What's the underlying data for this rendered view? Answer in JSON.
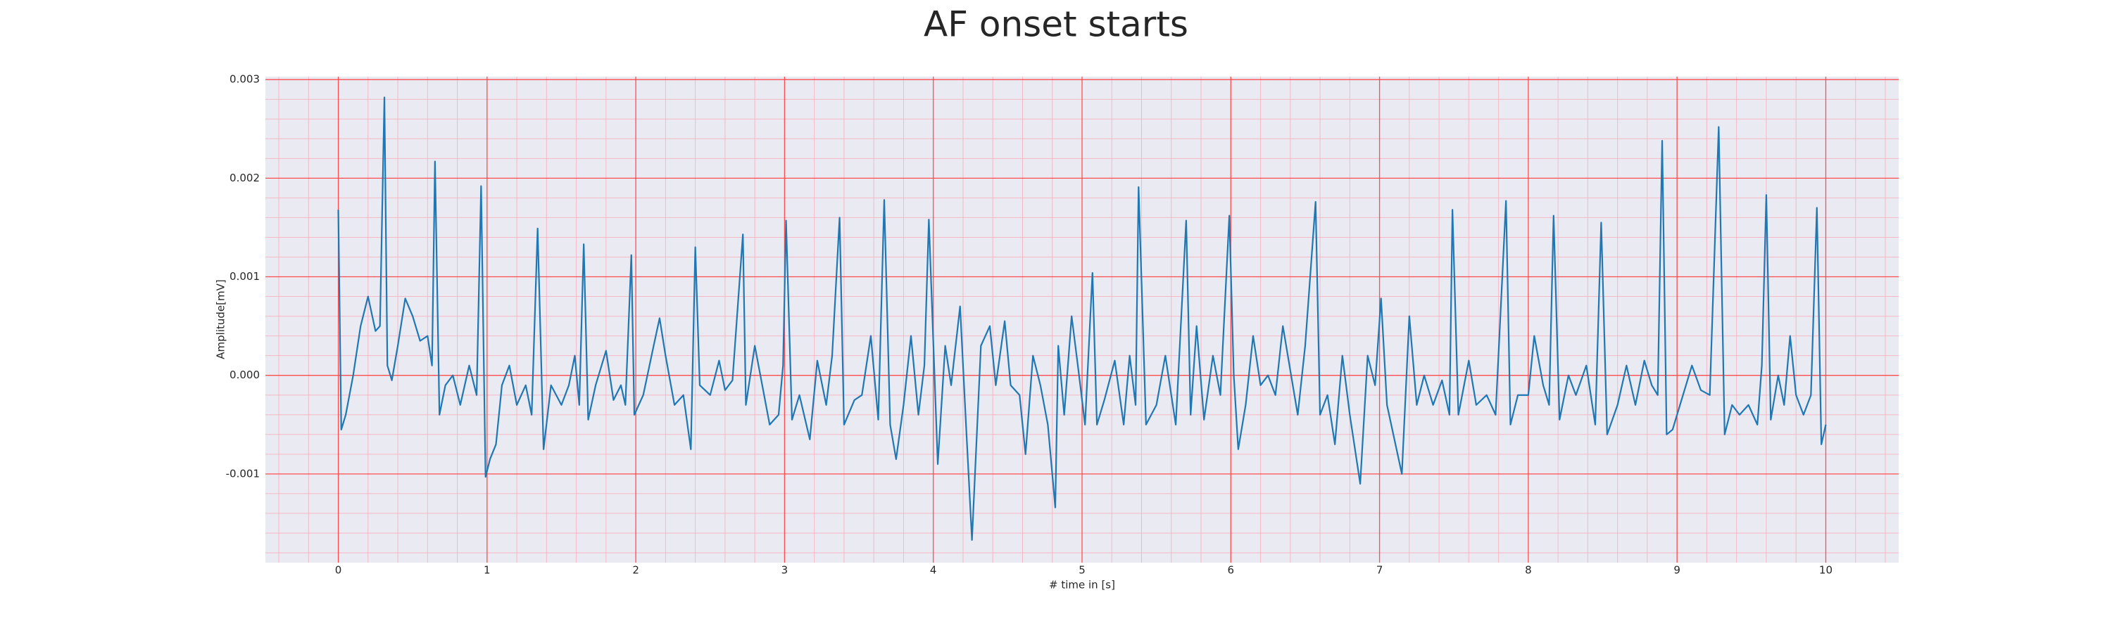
{
  "chart_data": {
    "type": "line",
    "title": "AF onset starts",
    "xlabel": "# time in [s]",
    "ylabel": "Amplitude[mV]",
    "xlim": [
      -0.49,
      10.49
    ],
    "ylim": [
      -0.0019,
      0.00303
    ],
    "xticks": [
      0,
      1,
      2,
      3,
      4,
      5,
      6,
      7,
      8,
      9,
      10
    ],
    "yticks": [
      -0.001,
      {
        "value": 0,
        "label": "0.000"
      },
      0.001,
      0.002,
      0.003
    ],
    "grid": true,
    "minor_grid": true,
    "grid_color": "#ff4d4d",
    "minor_grid_color": "#f5b8c4",
    "background": "#eaeaf2",
    "series": [
      {
        "color": "#1f77b4",
        "x": [
          0,
          0.02,
          0.05,
          0.1,
          0.15,
          0.2,
          0.25,
          0.28,
          0.31,
          0.33,
          0.36,
          0.4,
          0.45,
          0.5,
          0.55,
          0.6,
          0.63,
          0.65,
          0.68,
          0.72,
          0.77,
          0.82,
          0.88,
          0.93,
          0.96,
          0.99,
          1.02,
          1.06,
          1.1,
          1.15,
          1.2,
          1.26,
          1.3,
          1.34,
          1.38,
          1.43,
          1.5,
          1.55,
          1.59,
          1.62,
          1.65,
          1.68,
          1.73,
          1.8,
          1.85,
          1.9,
          1.93,
          1.97,
          1.99,
          2.05,
          2.12,
          2.16,
          2.2,
          2.26,
          2.32,
          2.37,
          2.4,
          2.43,
          2.5,
          2.56,
          2.6,
          2.65,
          2.72,
          2.74,
          2.8,
          2.85,
          2.9,
          2.96,
          2.99,
          3.01,
          3.05,
          3.1,
          3.17,
          3.22,
          3.28,
          3.32,
          3.37,
          3.4,
          3.47,
          3.52,
          3.58,
          3.63,
          3.67,
          3.71,
          3.75,
          3.8,
          3.85,
          3.9,
          3.94,
          3.97,
          4.03,
          4.08,
          4.12,
          4.18,
          4.22,
          4.26,
          4.32,
          4.38,
          4.42,
          4.48,
          4.52,
          4.58,
          4.62,
          4.67,
          4.72,
          4.77,
          4.82,
          4.84,
          4.88,
          4.93,
          4.98,
          5.02,
          5.07,
          5.1,
          5.15,
          5.22,
          5.28,
          5.32,
          5.36,
          5.38,
          5.43,
          5.5,
          5.56,
          5.63,
          5.7,
          5.73,
          5.77,
          5.82,
          5.88,
          5.93,
          5.99,
          6.02,
          6.05,
          6.1,
          6.15,
          6.2,
          6.25,
          6.3,
          6.35,
          6.45,
          6.5,
          6.57,
          6.6,
          6.65,
          6.7,
          6.75,
          6.8,
          6.87,
          6.92,
          6.97,
          7.01,
          7.05,
          7.15,
          7.2,
          7.25,
          7.3,
          7.36,
          7.42,
          7.47,
          7.49,
          7.53,
          7.6,
          7.65,
          7.72,
          7.78,
          7.85,
          7.88,
          7.93,
          8.0,
          8.04,
          8.1,
          8.14,
          8.17,
          8.21,
          8.27,
          8.32,
          8.39,
          8.45,
          8.49,
          8.53,
          8.6,
          8.66,
          8.72,
          8.78,
          8.83,
          8.87,
          8.9,
          8.93,
          8.97,
          9.02,
          9.1,
          9.16,
          9.22,
          9.28,
          9.32,
          9.37,
          9.42,
          9.48,
          9.54,
          9.57,
          9.6,
          9.63,
          9.68,
          9.72,
          9.76,
          9.8,
          9.85,
          9.9,
          9.94,
          9.97,
          10.0
        ],
        "values": [
          0.00168,
          -0.00055,
          -0.0004,
          0,
          0.0005,
          0.0008,
          0.00045,
          0.0005,
          0.00282,
          0.0001,
          -5e-05,
          0.0003,
          0.00078,
          0.0006,
          0.00035,
          0.0004,
          0.0001,
          0.00217,
          -0.0004,
          -0.0001,
          0,
          -0.0003,
          0.0001,
          -0.0002,
          0.00192,
          -0.00103,
          -0.00085,
          -0.0007,
          -0.0001,
          0.0001,
          -0.0003,
          -0.0001,
          -0.0004,
          0.00149,
          -0.00075,
          -0.0001,
          -0.0003,
          -0.0001,
          0.0002,
          -0.0003,
          0.00133,
          -0.00045,
          -0.0001,
          0.00025,
          -0.00025,
          -0.0001,
          -0.0003,
          0.00122,
          -0.0004,
          -0.0002,
          0.0003,
          0.00058,
          0.0002,
          -0.0003,
          -0.0002,
          -0.00075,
          0.0013,
          -0.0001,
          -0.0002,
          0.00015,
          -0.00015,
          -5e-05,
          0.00143,
          -0.0003,
          0.0003,
          -0.0001,
          -0.0005,
          -0.0004,
          0.0001,
          0.00157,
          -0.00045,
          -0.0002,
          -0.00065,
          0.00015,
          -0.0003,
          0.0002,
          0.0016,
          -0.0005,
          -0.00025,
          -0.0002,
          0.0004,
          -0.00045,
          0.00178,
          -0.0005,
          -0.00085,
          -0.0003,
          0.0004,
          -0.0004,
          0.0001,
          0.00158,
          -0.0009,
          0.0003,
          -0.0001,
          0.0007,
          -0.0005,
          -0.00167,
          0.0003,
          0.0005,
          -0.0001,
          0.00055,
          -0.0001,
          -0.0002,
          -0.0008,
          0.0002,
          -0.0001,
          -0.0005,
          -0.00134,
          0.0003,
          -0.0004,
          0.0006,
          0,
          -0.0005,
          0.00104,
          -0.0005,
          -0.00025,
          0.00015,
          -0.0005,
          0.0002,
          -0.0003,
          0.00191,
          -0.0005,
          -0.0003,
          0.0002,
          -0.0005,
          0.00157,
          -0.0004,
          0.0005,
          -0.00045,
          0.0002,
          -0.0002,
          0.00162,
          0,
          -0.00075,
          -0.0003,
          0.0004,
          -0.0001,
          0,
          -0.0002,
          0.0005,
          -0.0004,
          0.0003,
          0.00176,
          -0.0004,
          -0.0002,
          -0.0007,
          0.0002,
          -0.0004,
          -0.0011,
          0.0002,
          -0.0001,
          0.00078,
          -0.0003,
          -0.001,
          0.0006,
          -0.0003,
          0,
          -0.0003,
          -5e-05,
          -0.0004,
          0.00168,
          -0.0004,
          0.00015,
          -0.0003,
          -0.0002,
          -0.0004,
          0.00177,
          -0.0005,
          -0.0002,
          -0.0002,
          0.0004,
          -0.0001,
          -0.0003,
          0.00162,
          -0.00045,
          0,
          -0.0002,
          0.0001,
          -0.0005,
          0.00155,
          -0.0006,
          -0.0003,
          0.0001,
          -0.0003,
          0.00015,
          -0.0001,
          -0.0002,
          0.00238,
          -0.0006,
          -0.00055,
          -0.0003,
          0.0001,
          -0.00015,
          -0.0002,
          0.00252,
          -0.0006,
          -0.0003,
          -0.0004,
          -0.0003,
          -0.0005,
          0.0001,
          0.00183,
          -0.00045,
          0,
          -0.0003,
          0.0004,
          -0.0002,
          -0.0004,
          -0.0002,
          0.0017,
          -0.0007,
          -0.0005
        ]
      }
    ]
  }
}
